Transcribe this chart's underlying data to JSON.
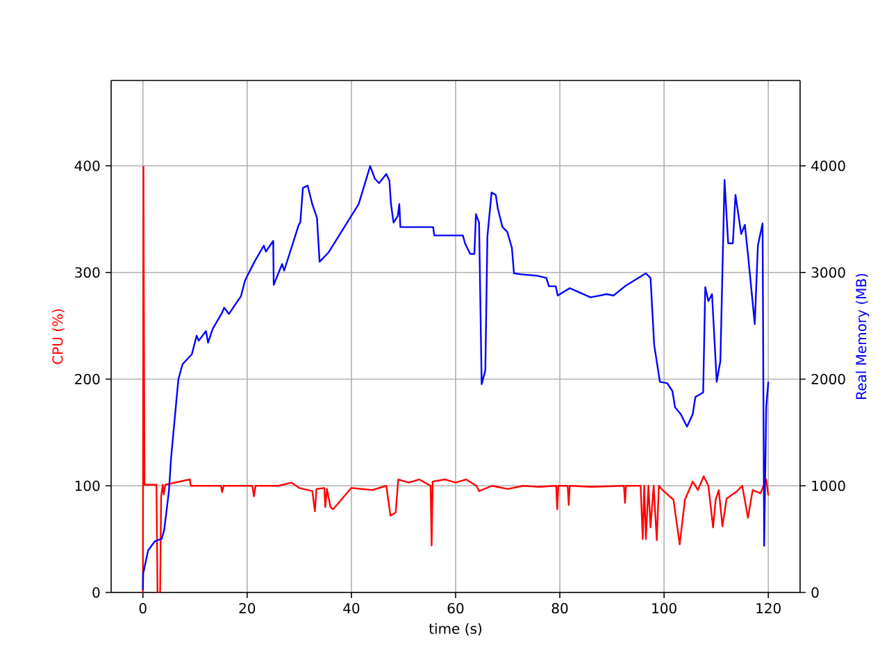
{
  "chart_data": {
    "type": "line",
    "xlabel": "time (s)",
    "ylabel": "CPU (%)",
    "y2label": "Real Memory (MB)",
    "xlim": [
      -6.1,
      126.1
    ],
    "ylim": [
      0,
      480
    ],
    "y2lim": [
      0,
      4800
    ],
    "xticks": [
      0,
      20,
      40,
      60,
      80,
      100,
      120
    ],
    "yticks": [
      0,
      100,
      200,
      300,
      400
    ],
    "y2ticks": [
      0,
      1000,
      2000,
      3000,
      4000
    ],
    "grid": true,
    "series": [
      {
        "color": "#ff0000",
        "axis": "y",
        "x": [
          0,
          0.1,
          0.3,
          2.6,
          2.8,
          3.3,
          3.5,
          3.8,
          4.0,
          4.3,
          9.0,
          9.2,
          15.0,
          15.2,
          15.5,
          21.0,
          21.3,
          21.6,
          26.0,
          28.5,
          30.0,
          32.5,
          33.0,
          33.3,
          34.8,
          35.0,
          35.3,
          36.0,
          36.5,
          40.0,
          44.0,
          46.7,
          47.5,
          48.5,
          49.0,
          51.0,
          53.0,
          55.2,
          55.4,
          55.6,
          58.0,
          60.0,
          62.0,
          64.0,
          64.5,
          67.0,
          70.0,
          73.0,
          76.0,
          79.3,
          79.5,
          79.7,
          81.5,
          81.7,
          81.9,
          86.0,
          92.3,
          92.5,
          92.7,
          95.5,
          95.9,
          96.2,
          96.5,
          97.0,
          97.4,
          98.0,
          98.6,
          99.0,
          99.7,
          101.8,
          103.0,
          104.0,
          105.5,
          106.5,
          107.6,
          108.5,
          109.4,
          109.9,
          110.5,
          111.2,
          112.0,
          114.0,
          115.0,
          116.1,
          117.0,
          118.5,
          119.6,
          120.0
        ],
        "values": [
          0,
          399,
          101,
          101,
          0,
          0,
          90,
          101,
          92,
          101,
          106,
          100,
          100,
          94,
          100,
          100,
          90,
          100,
          100,
          103,
          98,
          95,
          76,
          97,
          98,
          80,
          97,
          80,
          78,
          98,
          96,
          100,
          72,
          75,
          106,
          103,
          106,
          100,
          44,
          104,
          106,
          103,
          106,
          100,
          95,
          100,
          97,
          100,
          99,
          100,
          78,
          100,
          100,
          82,
          100,
          99,
          100,
          84,
          100,
          100,
          50,
          100,
          50,
          100,
          61,
          100,
          49,
          100,
          96,
          87,
          45,
          87,
          104,
          96,
          109,
          100,
          61,
          87,
          96,
          62,
          88,
          95,
          100,
          70,
          96,
          93,
          106,
          91
        ]
      },
      {
        "color": "#0000ff",
        "axis": "y2",
        "x": [
          0,
          0.05,
          1.0,
          2.3,
          3.6,
          4.1,
          5.0,
          5.4,
          6.8,
          7.6,
          9.4,
          10.3,
          10.7,
          12.1,
          12.5,
          13.4,
          15.2,
          15.6,
          16.5,
          17.7,
          18.8,
          19.6,
          21.4,
          23.2,
          23.6,
          25.0,
          25.1,
          26.7,
          27.1,
          28.5,
          29.9,
          30.2,
          30.7,
          31.6,
          32.5,
          33.4,
          33.9,
          35.6,
          39.2,
          41.4,
          43.6,
          44.5,
          45.3,
          46.7,
          47.3,
          47.6,
          48.1,
          48.9,
          49.2,
          49.4,
          55.7,
          55.9,
          61.4,
          61.8,
          62.8,
          63.6,
          63.9,
          64.5,
          65.0,
          65.7,
          66.1,
          66.9,
          67.7,
          68.1,
          69.0,
          69.9,
          70.8,
          71.2,
          72.5,
          75.6,
          77.4,
          77.9,
          79.2,
          79.6,
          81.9,
          85.9,
          89.0,
          90.3,
          92.5,
          96.5,
          97.4,
          98.1,
          99.2,
          100.6,
          101.6,
          102.1,
          103.2,
          104.4,
          105.5,
          106.0,
          107.5,
          107.9,
          108.5,
          109.2,
          110.1,
          110.8,
          111.6,
          112.3,
          113.2,
          113.7,
          114.8,
          115.5,
          116.1,
          117.4,
          118.0,
          118.9,
          119.2,
          119.6,
          120.0
        ],
        "values": [
          25,
          178,
          394,
          481,
          503,
          589,
          957,
          1260,
          1997,
          2140,
          2234,
          2407,
          2360,
          2451,
          2342,
          2472,
          2624,
          2670,
          2611,
          2698,
          2776,
          2927,
          3100,
          3252,
          3196,
          3296,
          2884,
          3079,
          3018,
          3231,
          3447,
          3470,
          3793,
          3815,
          3641,
          3511,
          3100,
          3187,
          3469,
          3641,
          3997,
          3880,
          3837,
          3923,
          3860,
          3641,
          3468,
          3530,
          3641,
          3425,
          3425,
          3347,
          3347,
          3273,
          3174,
          3174,
          3546,
          3468,
          1953,
          2082,
          3338,
          3750,
          3728,
          3598,
          3425,
          3382,
          3231,
          2992,
          2983,
          2970,
          2949,
          2871,
          2871,
          2784,
          2853,
          2767,
          2797,
          2784,
          2871,
          2992,
          2949,
          2321,
          1975,
          1962,
          1888,
          1737,
          1672,
          1555,
          1672,
          1832,
          1875,
          2862,
          2732,
          2797,
          1975,
          2169,
          3867,
          3273,
          3273,
          3728,
          3360,
          3447,
          3166,
          2516,
          3252,
          3460,
          438,
          1737,
          1975
        ]
      }
    ]
  }
}
